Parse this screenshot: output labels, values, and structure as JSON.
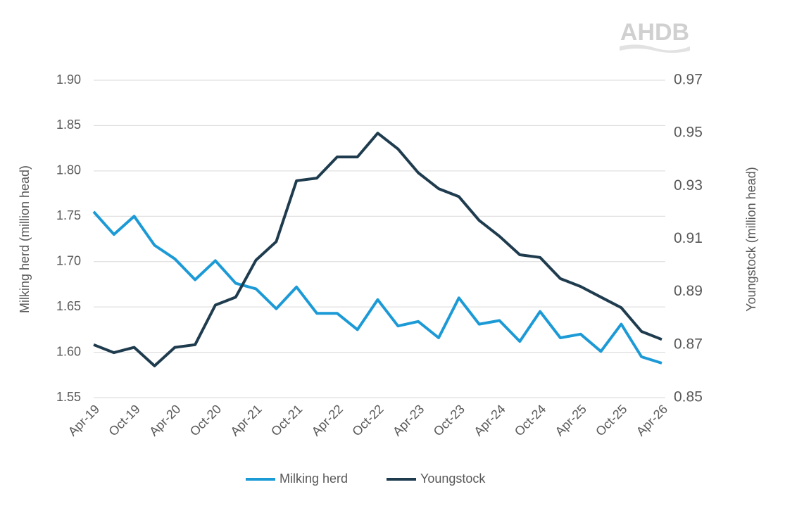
{
  "logo": "AHDB",
  "chart_data": {
    "type": "line",
    "y_label": "Milking herd (million head)",
    "y2_label": "Youngstock (million head)",
    "categories": [
      "Apr-19",
      null,
      "Oct-19",
      null,
      "Apr-20",
      null,
      "Oct-20",
      null,
      "Apr-21",
      null,
      "Oct-21",
      null,
      "Apr-22",
      null,
      "Oct-22",
      null,
      "Apr-23",
      null,
      "Oct-23",
      null,
      "Apr-24",
      null,
      "Oct-24",
      null,
      "Apr-25",
      null,
      "Oct-25",
      null,
      "Apr-26"
    ],
    "series": [
      {
        "name": "Milking herd",
        "color": "#1c9ad6",
        "values": [
          1.755,
          1.73,
          1.75,
          1.718,
          1.703,
          1.68,
          1.701,
          1.676,
          1.67,
          1.648,
          1.672,
          1.643,
          1.643,
          1.625,
          1.658,
          1.629,
          1.634,
          1.616,
          1.66,
          1.631,
          1.635,
          1.612,
          1.645,
          1.616,
          1.62,
          1.601,
          1.631,
          1.595,
          1.588
        ]
      },
      {
        "name": "Youngstock",
        "color": "#1f3c4f",
        "axis": "y2",
        "values": [
          0.87,
          0.867,
          0.869,
          0.862,
          0.869,
          0.87,
          0.885,
          0.888,
          0.902,
          0.909,
          0.932,
          0.933,
          0.941,
          0.941,
          0.95,
          0.944,
          0.935,
          0.929,
          0.926,
          0.917,
          0.911,
          0.904,
          0.903,
          0.895,
          0.892,
          0.888,
          0.884,
          0.875,
          0.872
        ]
      }
    ],
    "ylim": [
      1.55,
      1.9
    ],
    "yticks": [
      1.55,
      {
        "value": 1.6,
        "label": "1.60"
      },
      1.65,
      {
        "value": 1.7,
        "label": "1.70"
      },
      1.75,
      {
        "value": 1.8,
        "label": "1.80"
      },
      1.85,
      {
        "value": 1.9,
        "label": "1.90"
      }
    ],
    "y2lim": [
      0.85,
      0.97
    ],
    "y2ticks": [
      0.85,
      0.87,
      0.89,
      0.91,
      0.93,
      0.95,
      0.97
    ],
    "grid": true,
    "legend": "bottom"
  }
}
